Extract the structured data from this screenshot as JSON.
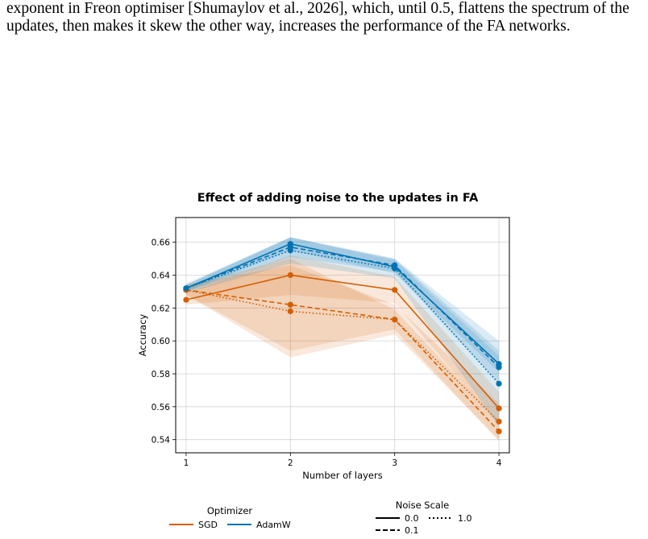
{
  "paper": {
    "line1": "exponent in Freon optimiser [Shumaylov et al., 2026], which, until 0.5, flattens the spectrum of the",
    "line2": "updates, then makes it skew the other way, increases the performance of the FA networks."
  },
  "chart_data": {
    "type": "line",
    "title": "Effect of adding noise to the updates in FA",
    "xlabel": "Number of layers",
    "ylabel": "Accuracy",
    "x": [
      1,
      2,
      3,
      4
    ],
    "x_ticks": [
      "1",
      "2",
      "3",
      "4"
    ],
    "y_ticks": [
      "0.54",
      "0.56",
      "0.58",
      "0.60",
      "0.62",
      "0.64",
      "0.66"
    ],
    "xlim": [
      0.9,
      4.1
    ],
    "ylim": [
      0.532,
      0.675
    ],
    "grid": true,
    "legend_placement": "below",
    "colors": {
      "SGD": "#D55E00",
      "AdamW": "#0072B2"
    },
    "series": [
      {
        "optimizer": "SGD",
        "noise_scale": "0.0",
        "style": "solid",
        "values": [
          0.625,
          0.64,
          0.631,
          0.559
        ],
        "band_low": [
          0.622,
          0.628,
          0.623,
          0.549
        ],
        "band_high": [
          0.629,
          0.652,
          0.639,
          0.569
        ]
      },
      {
        "optimizer": "SGD",
        "noise_scale": "0.1",
        "style": "dashed",
        "values": [
          0.631,
          0.622,
          0.613,
          0.545
        ],
        "band_low": [
          0.628,
          0.594,
          0.607,
          0.539
        ],
        "band_high": [
          0.634,
          0.65,
          0.619,
          0.551
        ]
      },
      {
        "optimizer": "SGD",
        "noise_scale": "1.0",
        "style": "dotted",
        "values": [
          0.631,
          0.618,
          0.613,
          0.551
        ],
        "band_low": [
          0.628,
          0.59,
          0.604,
          0.54
        ],
        "band_high": [
          0.634,
          0.646,
          0.622,
          0.562
        ]
      },
      {
        "optimizer": "AdamW",
        "noise_scale": "0.0",
        "style": "solid",
        "values": [
          0.632,
          0.659,
          0.645,
          0.586
        ],
        "band_low": [
          0.63,
          0.655,
          0.641,
          0.581
        ],
        "band_high": [
          0.634,
          0.663,
          0.649,
          0.591
        ]
      },
      {
        "optimizer": "AdamW",
        "noise_scale": "0.1",
        "style": "dashed",
        "values": [
          0.632,
          0.657,
          0.646,
          0.584
        ],
        "band_low": [
          0.63,
          0.651,
          0.642,
          0.574
        ],
        "band_high": [
          0.634,
          0.663,
          0.65,
          0.594
        ]
      },
      {
        "optimizer": "AdamW",
        "noise_scale": "1.0",
        "style": "dotted",
        "values": [
          0.632,
          0.655,
          0.644,
          0.574
        ],
        "band_low": [
          0.629,
          0.647,
          0.638,
          0.548
        ],
        "band_high": [
          0.635,
          0.663,
          0.65,
          0.6
        ]
      }
    ],
    "legends": {
      "optimizer": {
        "title": "Optimizer",
        "items": [
          "SGD",
          "AdamW"
        ]
      },
      "noise": {
        "title": "Noise Scale",
        "items": [
          "0.0",
          "1.0",
          "0.1"
        ]
      }
    }
  }
}
